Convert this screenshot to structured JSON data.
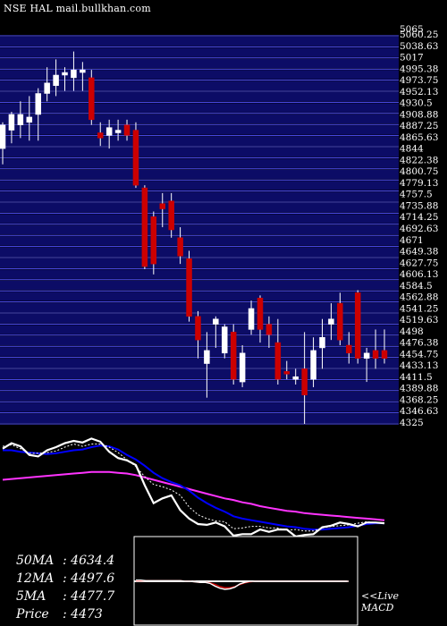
{
  "header": {
    "exchange": "NSE",
    "symbol": "HAL",
    "site": "mail.bullkhan.com"
  },
  "chart_data": {
    "type": "candlestick",
    "ylim": [
      4325,
      5065
    ],
    "price_ticks": [
      "5065",
      "5060.25",
      "5038.63",
      "5017",
      "4995.38",
      "4973.75",
      "4952.13",
      "4930.5",
      "4908.88",
      "4887.25",
      "4865.63",
      "4844",
      "4822.38",
      "4800.75",
      "4779.13",
      "4757.5",
      "4735.88",
      "4714.25",
      "4692.63",
      "4671",
      "4649.38",
      "4627.75",
      "4606.13",
      "4584.5",
      "4562.88",
      "4541.25",
      "4519.63",
      "4498",
      "4476.38",
      "4454.75",
      "4433.13",
      "4411.5",
      "4389.88",
      "4368.25",
      "4346.63",
      "4325"
    ],
    "candles": [
      {
        "o": 4850,
        "h": 4900,
        "l": 4820,
        "c": 4895,
        "dir": "up"
      },
      {
        "o": 4885,
        "h": 4920,
        "l": 4860,
        "c": 4915,
        "dir": "up"
      },
      {
        "o": 4895,
        "h": 4940,
        "l": 4870,
        "c": 4915,
        "dir": "up"
      },
      {
        "o": 4900,
        "h": 4950,
        "l": 4865,
        "c": 4910,
        "dir": "up"
      },
      {
        "o": 4915,
        "h": 4965,
        "l": 4865,
        "c": 4955,
        "dir": "up"
      },
      {
        "o": 4955,
        "h": 5005,
        "l": 4940,
        "c": 4975,
        "dir": "up"
      },
      {
        "o": 4970,
        "h": 5020,
        "l": 4950,
        "c": 4990,
        "dir": "up"
      },
      {
        "o": 4990,
        "h": 5005,
        "l": 4960,
        "c": 4995,
        "dir": "up"
      },
      {
        "o": 4985,
        "h": 5035,
        "l": 4960,
        "c": 5000,
        "dir": "up"
      },
      {
        "o": 4995,
        "h": 5015,
        "l": 4960,
        "c": 5000,
        "dir": "up"
      },
      {
        "o": 4985,
        "h": 5000,
        "l": 4895,
        "c": 4905,
        "dir": "down"
      },
      {
        "o": 4880,
        "h": 4900,
        "l": 4855,
        "c": 4870,
        "dir": "down"
      },
      {
        "o": 4875,
        "h": 4905,
        "l": 4850,
        "c": 4890,
        "dir": "up"
      },
      {
        "o": 4880,
        "h": 4905,
        "l": 4865,
        "c": 4885,
        "dir": "up"
      },
      {
        "o": 4895,
        "h": 4905,
        "l": 4865,
        "c": 4875,
        "dir": "down"
      },
      {
        "o": 4885,
        "h": 4900,
        "l": 4775,
        "c": 4780,
        "dir": "down"
      },
      {
        "o": 4775,
        "h": 4780,
        "l": 4620,
        "c": 4625,
        "dir": "down"
      },
      {
        "o": 4720,
        "h": 4730,
        "l": 4610,
        "c": 4630,
        "dir": "down"
      },
      {
        "o": 4745,
        "h": 4765,
        "l": 4700,
        "c": 4735,
        "dir": "down"
      },
      {
        "o": 4750,
        "h": 4765,
        "l": 4680,
        "c": 4695,
        "dir": "down"
      },
      {
        "o": 4680,
        "h": 4700,
        "l": 4630,
        "c": 4645,
        "dir": "down"
      },
      {
        "o": 4640,
        "h": 4655,
        "l": 4520,
        "c": 4530,
        "dir": "down"
      },
      {
        "o": 4530,
        "h": 4540,
        "l": 4450,
        "c": 4485,
        "dir": "down"
      },
      {
        "o": 4440,
        "h": 4500,
        "l": 4375,
        "c": 4465,
        "dir": "up"
      },
      {
        "o": 4515,
        "h": 4530,
        "l": 4470,
        "c": 4525,
        "dir": "up"
      },
      {
        "o": 4460,
        "h": 4515,
        "l": 4450,
        "c": 4510,
        "dir": "up"
      },
      {
        "o": 4500,
        "h": 4515,
        "l": 4400,
        "c": 4410,
        "dir": "down"
      },
      {
        "o": 4405,
        "h": 4475,
        "l": 4395,
        "c": 4460,
        "dir": "up"
      },
      {
        "o": 4505,
        "h": 4560,
        "l": 4495,
        "c": 4545,
        "dir": "up"
      },
      {
        "o": 4565,
        "h": 4570,
        "l": 4480,
        "c": 4505,
        "dir": "down"
      },
      {
        "o": 4515,
        "h": 4530,
        "l": 4470,
        "c": 4495,
        "dir": "down"
      },
      {
        "o": 4480,
        "h": 4525,
        "l": 4400,
        "c": 4410,
        "dir": "down"
      },
      {
        "o": 4420,
        "h": 4445,
        "l": 4410,
        "c": 4425,
        "dir": "down"
      },
      {
        "o": 4415,
        "h": 4430,
        "l": 4400,
        "c": 4410,
        "dir": "up"
      },
      {
        "o": 4430,
        "h": 4500,
        "l": 4325,
        "c": 4380,
        "dir": "down"
      },
      {
        "o": 4410,
        "h": 4490,
        "l": 4395,
        "c": 4465,
        "dir": "up"
      },
      {
        "o": 4470,
        "h": 4525,
        "l": 4430,
        "c": 4490,
        "dir": "up"
      },
      {
        "o": 4525,
        "h": 4555,
        "l": 4485,
        "c": 4515,
        "dir": "up"
      },
      {
        "o": 4555,
        "h": 4575,
        "l": 4475,
        "c": 4485,
        "dir": "down"
      },
      {
        "o": 4475,
        "h": 4500,
        "l": 4440,
        "c": 4460,
        "dir": "down"
      },
      {
        "o": 4575,
        "h": 4580,
        "l": 4440,
        "c": 4450,
        "dir": "down"
      },
      {
        "o": 4450,
        "h": 4470,
        "l": 4405,
        "c": 4460,
        "dir": "up"
      },
      {
        "o": 4465,
        "h": 4505,
        "l": 4430,
        "c": 4450,
        "dir": "down"
      },
      {
        "o": 4465,
        "h": 4505,
        "l": 4440,
        "c": 4450,
        "dir": "down"
      }
    ],
    "indicators": {
      "short_avg": [
        0.93,
        0.95,
        0.9,
        0.84,
        0.84,
        0.85,
        0.87,
        0.92,
        0.96,
        0.93,
        0.96,
        0.96,
        0.92,
        0.85,
        0.76,
        0.67,
        0.54,
        0.44,
        0.41,
        0.37,
        0.3,
        0.15,
        0.05,
        0.0,
        -0.03,
        -0.04,
        -0.13,
        -0.12,
        -0.1,
        -0.1,
        -0.12,
        -0.12,
        -0.15,
        -0.14,
        -0.16,
        -0.16,
        -0.12,
        -0.1,
        -0.09,
        -0.08,
        -0.06,
        -0.04,
        -0.05,
        -0.06
      ],
      "mid_avg": [
        0.88,
        0.88,
        0.86,
        0.85,
        0.84,
        0.83,
        0.84,
        0.86,
        0.88,
        0.89,
        0.92,
        0.94,
        0.93,
        0.89,
        0.82,
        0.76,
        0.68,
        0.59,
        0.52,
        0.47,
        0.43,
        0.36,
        0.27,
        0.2,
        0.14,
        0.09,
        0.03,
        0.0,
        -0.02,
        -0.04,
        -0.06,
        -0.08,
        -0.1,
        -0.11,
        -0.13,
        -0.14,
        -0.14,
        -0.13,
        -0.12,
        -0.11,
        -0.09,
        -0.07,
        -0.06,
        -0.06
      ],
      "long_avg": [
        0.5,
        0.51,
        0.52,
        0.53,
        0.54,
        0.55,
        0.56,
        0.57,
        0.58,
        0.59,
        0.6,
        0.6,
        0.6,
        0.59,
        0.58,
        0.56,
        0.53,
        0.5,
        0.47,
        0.44,
        0.41,
        0.38,
        0.35,
        0.32,
        0.29,
        0.26,
        0.24,
        0.21,
        0.19,
        0.16,
        0.14,
        0.12,
        0.1,
        0.09,
        0.07,
        0.06,
        0.05,
        0.04,
        0.03,
        0.02,
        0.01,
        0.0,
        -0.01,
        -0.02
      ],
      "price_trace": [
        0.9,
        0.97,
        0.93,
        0.82,
        0.8,
        0.88,
        0.92,
        0.97,
        1.0,
        0.98,
        1.03,
        0.99,
        0.86,
        0.78,
        0.75,
        0.69,
        0.43,
        0.2,
        0.26,
        0.3,
        0.11,
        0.0,
        -0.07,
        -0.08,
        -0.05,
        -0.1,
        -0.22,
        -0.2,
        -0.2,
        -0.14,
        -0.17,
        -0.14,
        -0.14,
        -0.23,
        -0.21,
        -0.2,
        -0.11,
        -0.09,
        -0.05,
        -0.07,
        -0.1,
        -0.05,
        -0.05,
        -0.06
      ]
    },
    "macd": {
      "line": [
        0.02,
        0.02,
        0.01,
        0.01,
        0.01,
        0.01,
        0.01,
        0.01,
        0.01,
        0.01,
        0.0,
        0.0,
        -0.01,
        -0.02,
        -0.02,
        -0.04,
        -0.09,
        -0.13,
        -0.15,
        -0.14,
        -0.11,
        -0.05,
        -0.02,
        0.0,
        0.0,
        0.0,
        0.0,
        0.0,
        0.0,
        0.0,
        0.0,
        0.0,
        0.0,
        0.0,
        0.0,
        0.0,
        0.0,
        0.0,
        0.0,
        0.0,
        0.0,
        0.0,
        0.0,
        0.0
      ],
      "signal": [
        0.01,
        0.01,
        0.01,
        0.01,
        0.01,
        0.01,
        0.01,
        0.01,
        0.01,
        0.01,
        0.0,
        0.0,
        -0.01,
        -0.02,
        -0.02,
        -0.03,
        -0.06,
        -0.1,
        -0.12,
        -0.12,
        -0.1,
        -0.06,
        -0.03,
        -0.01,
        0.0,
        0.0,
        0.0,
        0.0,
        0.0,
        0.0,
        0.0,
        0.0,
        0.0,
        0.0,
        0.0,
        0.0,
        0.0,
        0.0,
        0.0,
        0.0,
        0.0,
        0.0,
        0.0,
        0.0
      ]
    },
    "colors": {
      "up": "#ffffff",
      "down": "#cc0000",
      "grid_band": "#0c0c66",
      "grid_line": "#5050ff",
      "short_avg": "#ffffff",
      "mid_avg": "#0000ff",
      "long_avg": "#ff33ff"
    }
  },
  "stats": {
    "ma50_label": "50MA",
    "ma50_value": ": 4634.4",
    "ma12_label": "12MA",
    "ma12_value": ": 4497.6",
    "ma5_label": "5MA",
    "ma5_value": ": 4477.7",
    "price_label": "Price",
    "price_value": ": 4473"
  },
  "live": {
    "line1": "<<Live",
    "line2": "MACD"
  }
}
